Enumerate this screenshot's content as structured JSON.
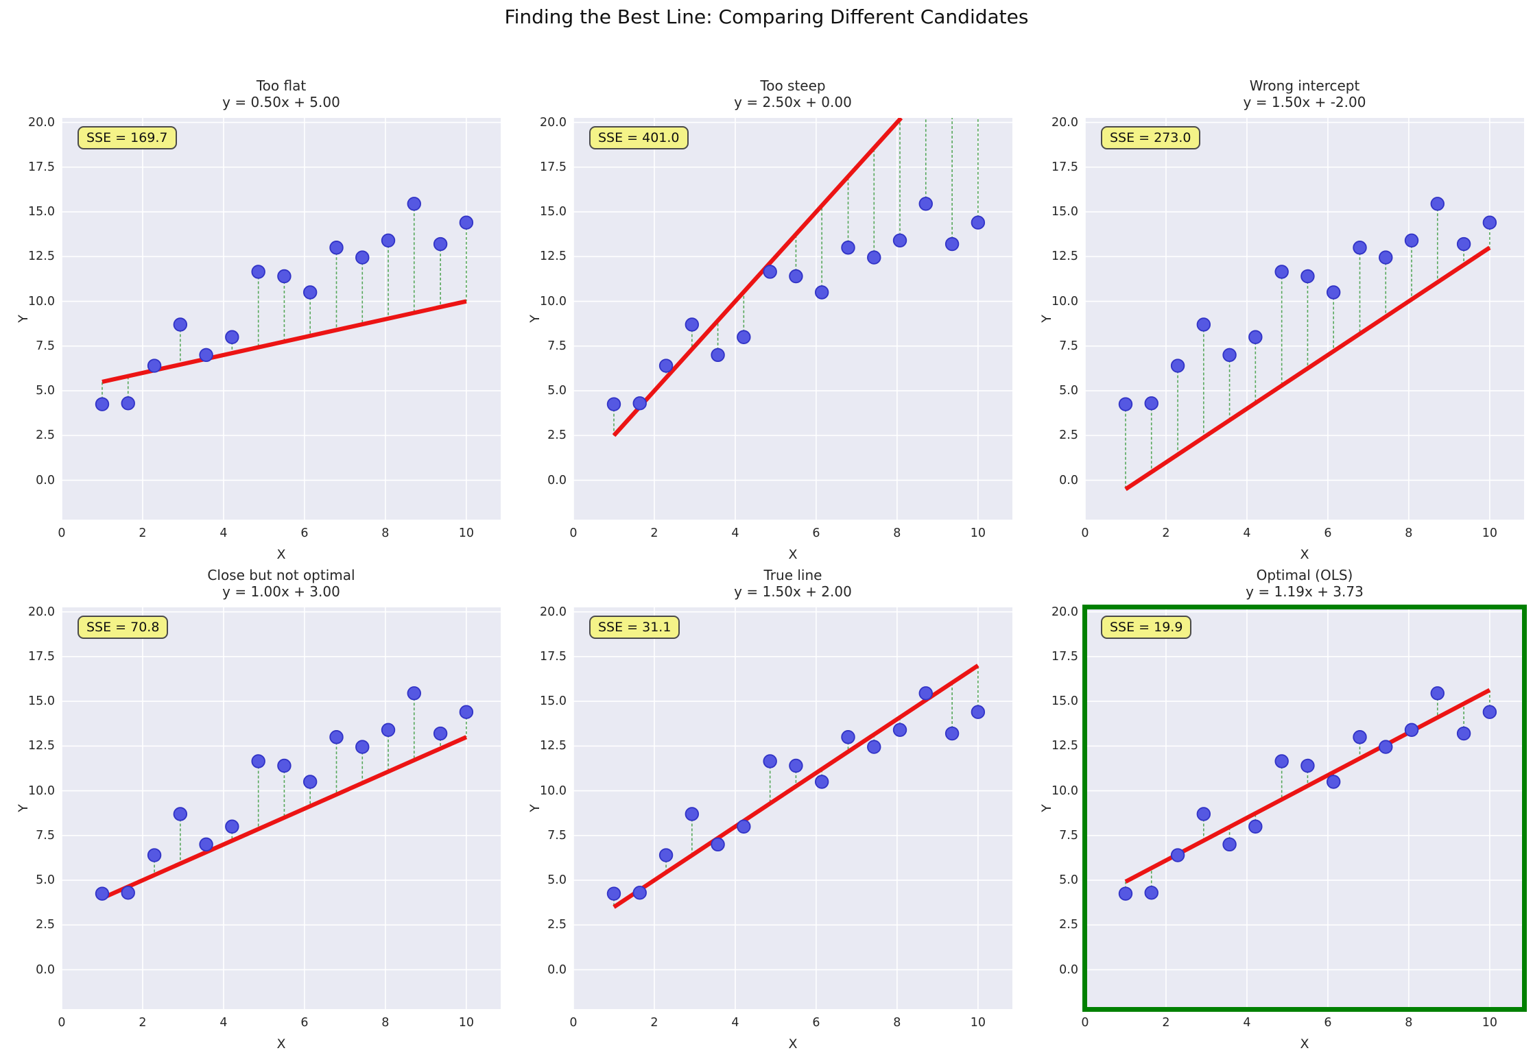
{
  "figure": {
    "title": "Finding the Best Line: Comparing Different Candidates"
  },
  "chart_data": {
    "type": "scatter",
    "x": [
      1.0,
      1.64,
      2.29,
      2.93,
      3.57,
      4.21,
      4.86,
      5.5,
      6.14,
      6.79,
      7.43,
      8.07,
      8.71,
      9.36,
      10.0
    ],
    "y": [
      4.25,
      4.3,
      6.4,
      8.7,
      7.0,
      8.0,
      11.65,
      11.4,
      10.5,
      13.0,
      12.45,
      13.4,
      15.45,
      13.2,
      14.4
    ],
    "xlabel": "X",
    "ylabel": "Y",
    "xlim": [
      0,
      10.85
    ],
    "ylim": [
      -2.2,
      20.25
    ],
    "xticks": [
      0,
      2,
      4,
      6,
      8,
      10
    ],
    "yticks": [
      0,
      2.5,
      5,
      7.5,
      10,
      12.5,
      15,
      17.5,
      20
    ],
    "grid": true,
    "legend": "none",
    "line_x_range": [
      1,
      10
    ],
    "panels": [
      {
        "id": "too-flat",
        "title": "Too flat",
        "equation": "y = 0.50x + 5.00",
        "slope": 0.5,
        "intercept": 5.0,
        "sse": 169.7,
        "sse_label": "SSE = 169.7",
        "highlighted": false
      },
      {
        "id": "too-steep",
        "title": "Too steep",
        "equation": "y = 2.50x + 0.00",
        "slope": 2.5,
        "intercept": 0.0,
        "sse": 401.0,
        "sse_label": "SSE = 401.0",
        "highlighted": false
      },
      {
        "id": "wrong-intercept",
        "title": "Wrong intercept",
        "equation": "y = 1.50x + -2.00",
        "slope": 1.5,
        "intercept": -2.0,
        "sse": 273.0,
        "sse_label": "SSE = 273.0",
        "highlighted": false
      },
      {
        "id": "close-but-not-optimal",
        "title": "Close but not optimal",
        "equation": "y = 1.00x + 3.00",
        "slope": 1.0,
        "intercept": 3.0,
        "sse": 70.8,
        "sse_label": "SSE = 70.8",
        "highlighted": false
      },
      {
        "id": "true-line",
        "title": "True line",
        "equation": "y = 1.50x + 2.00",
        "slope": 1.5,
        "intercept": 2.0,
        "sse": 31.1,
        "sse_label": "SSE = 31.1",
        "highlighted": false
      },
      {
        "id": "optimal-ols",
        "title": "Optimal (OLS)",
        "equation": "y = 1.19x + 3.73",
        "slope": 1.19,
        "intercept": 3.73,
        "sse": 19.9,
        "sse_label": "SSE = 19.9",
        "highlighted": true
      }
    ],
    "colors": {
      "axes_bg": "#e9eaf3",
      "grid": "#ffffff",
      "point_fill": "#5558e2",
      "point_edge": "#3133c6",
      "fit_line": "#ec1414",
      "residual": "#46a049",
      "sse_box_bg": "#f4f388",
      "sse_box_border": "#4a4a4a",
      "highlight_border": "#008000",
      "text": "#262626"
    }
  }
}
